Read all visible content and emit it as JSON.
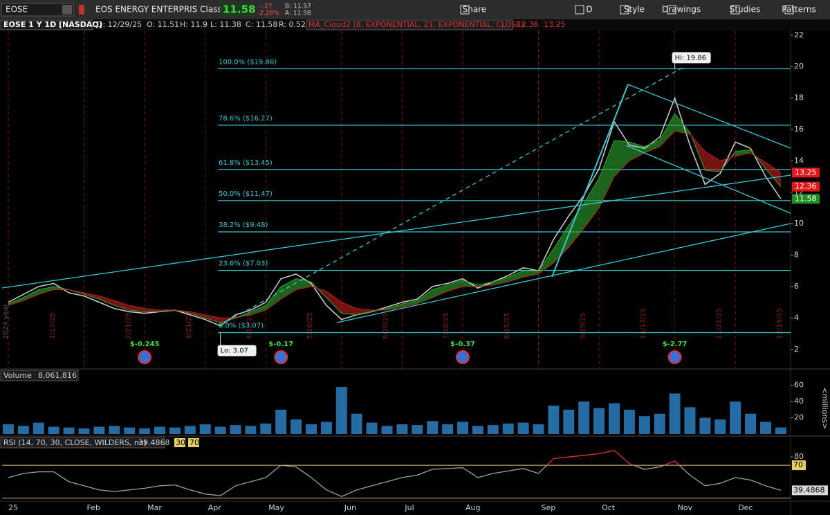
{
  "toolbar": {
    "symbol": "EOSE",
    "company": "EOS ENERGY ENTERPRIS Class A",
    "change": "-.27",
    "change_pct": "-2.28%",
    "bid": "B: 11.57",
    "ask": "A: 11.58",
    "buttons": [
      "Share",
      "D",
      "Style",
      "Drawings",
      "Studies",
      "Patterns"
    ]
  },
  "header": {
    "date": "D: 12/29/25",
    "open": "O: 11.51",
    "high": "H: 11.9",
    "low": "L: 11.38",
    "close": "C: 11.58",
    "range": "R: 0.52"
  },
  "chart_data": [
    {
      "type": "line",
      "categories": [
        "25",
        null,
        null,
        null,
        null,
        "Feb",
        null,
        null,
        null,
        "Mar",
        null,
        null,
        null,
        "Apr",
        null,
        null,
        null,
        "May",
        null,
        null,
        null,
        null,
        "Jun",
        null,
        null,
        null,
        "Jul",
        null,
        null,
        null,
        "Aug",
        null,
        null,
        null,
        null,
        "Sep",
        null,
        null,
        null,
        "Oct",
        null,
        null,
        null,
        null,
        "Nov",
        null,
        null,
        null,
        "Dec",
        null,
        null,
        null
      ],
      "series": [
        {
          "name": "EOSE 1 Y 1D [NASDAQ]",
          "color": "#c8c8c8",
          "values": [
            5.0,
            5.5,
            6.0,
            6.2,
            5.6,
            5.4,
            5.0,
            4.6,
            4.4,
            4.3,
            4.4,
            4.5,
            4.2,
            3.9,
            3.5,
            4.2,
            4.5,
            5.0,
            6.5,
            6.8,
            6.2,
            4.8,
            3.9,
            4.2,
            4.4,
            4.7,
            5.0,
            5.2,
            6.0,
            6.2,
            6.5,
            5.9,
            6.3,
            6.7,
            7.2,
            7.0,
            9.0,
            10.5,
            11.8,
            13.5,
            16.5,
            15.0,
            14.8,
            15.5,
            18.0,
            15.0,
            12.5,
            13.2,
            15.2,
            14.8,
            13.0,
            11.58
          ]
        },
        {
          "name": "MA_Cloud2 (8, EXPONENTIAL, 21, EXPONENTIAL, CLOSE)",
          "color": "#2fa52f",
          "values": [
            4.9,
            5.3,
            5.8,
            6.0,
            5.8,
            5.5,
            5.2,
            4.8,
            4.5,
            4.4,
            4.4,
            4.5,
            4.3,
            4.0,
            3.7,
            4.0,
            4.4,
            4.8,
            6.0,
            6.5,
            6.3,
            5.3,
            4.3,
            4.2,
            4.4,
            4.6,
            4.9,
            5.1,
            5.8,
            6.1,
            6.4,
            6.1,
            6.3,
            6.6,
            7.0,
            7.0,
            8.4,
            9.9,
            11.3,
            12.9,
            15.3,
            15.2,
            14.9,
            15.3,
            17.0,
            15.8,
            13.4,
            13.3,
            14.6,
            14.7,
            13.5,
            12.36
          ]
        },
        {
          "color": "#c0201e",
          "values": [
            4.8,
            5.1,
            5.5,
            5.8,
            5.8,
            5.6,
            5.4,
            5.1,
            4.8,
            4.6,
            4.5,
            4.5,
            4.4,
            4.2,
            4.0,
            4.0,
            4.2,
            4.5,
            5.2,
            5.8,
            6.0,
            5.7,
            5.0,
            4.6,
            4.5,
            4.5,
            4.7,
            4.9,
            5.3,
            5.7,
            6.0,
            6.0,
            6.1,
            6.3,
            6.6,
            6.8,
            7.5,
            8.5,
            9.7,
            11.0,
            13.0,
            14.0,
            14.5,
            14.9,
            15.9,
            15.7,
            14.6,
            14.0,
            14.3,
            14.5,
            13.9,
            13.25
          ]
        }
      ],
      "ylim": [
        0.8,
        22.3
      ],
      "yticks": [
        2,
        4,
        6,
        8,
        10,
        12,
        14,
        16,
        18,
        20,
        22
      ],
      "grid": true,
      "fib_levels": [
        {
          "value": 19.86,
          "label": "100.0% ($19.86)"
        },
        {
          "value": 16.27,
          "label": "78.6% ($16.27)"
        },
        {
          "value": 13.45,
          "label": "61.8% ($13.45)"
        },
        {
          "value": 11.47,
          "label": "50.0% ($11.47)"
        },
        {
          "value": 9.48,
          "label": "38.2% ($9.48)"
        },
        {
          "value": 7.03,
          "label": "23.6% ($7.03)"
        },
        {
          "value": 3.07,
          "label": "0.0% ($3.07)"
        }
      ],
      "annotations": [
        {
          "value": 19.86,
          "label": "Hi: 19.86"
        },
        {
          "value": 3.07,
          "label": "Lo: 3.07"
        }
      ],
      "earnings": [
        "$-0.245",
        "$-0.17",
        "$-0.37",
        "$-2.77"
      ],
      "expirations": [
        "1/17/25",
        "2/21/25",
        "3/21/25",
        "4/17/25",
        "5/16/25",
        "6/20/25",
        "7/18/25",
        "8/15/25",
        "9/19/25",
        "10/17/25",
        "11/21/25",
        "12/19/25"
      ],
      "year_marker": "2024 year"
    },
    {
      "type": "bar",
      "title": "Volume",
      "current": "8,061,816",
      "unit_label": "<millions>",
      "color": "#2a7fc0",
      "values": [
        12,
        10,
        14,
        9,
        8,
        7,
        9,
        10,
        8,
        7,
        9,
        8,
        10,
        12,
        9,
        11,
        10,
        13,
        30,
        18,
        12,
        15,
        58,
        25,
        14,
        10,
        12,
        11,
        16,
        12,
        15,
        10,
        11,
        13,
        14,
        12,
        35,
        30,
        40,
        32,
        38,
        30,
        22,
        25,
        50,
        33,
        20,
        18,
        40,
        25,
        15,
        8.061816
      ],
      "ylim": [
        0,
        70
      ],
      "yticks": [
        20,
        40,
        60
      ]
    },
    {
      "type": "line",
      "title": "RSI (14, 70, 30, CLOSE, WILDERS, no)",
      "color": "#a0a0a0",
      "overbought_color": "#e03030",
      "values": [
        55,
        60,
        62,
        62,
        50,
        45,
        40,
        38,
        40,
        42,
        45,
        46,
        40,
        35,
        33,
        45,
        50,
        55,
        70,
        68,
        55,
        40,
        32,
        40,
        45,
        50,
        55,
        58,
        65,
        66,
        67,
        55,
        60,
        63,
        66,
        60,
        78,
        80,
        82,
        84,
        88,
        72,
        65,
        68,
        75,
        58,
        45,
        48,
        55,
        52,
        45,
        39.4868
      ],
      "ylim": [
        28,
        97
      ],
      "yticks": [
        80
      ],
      "levels": [
        30,
        70
      ]
    }
  ]
}
